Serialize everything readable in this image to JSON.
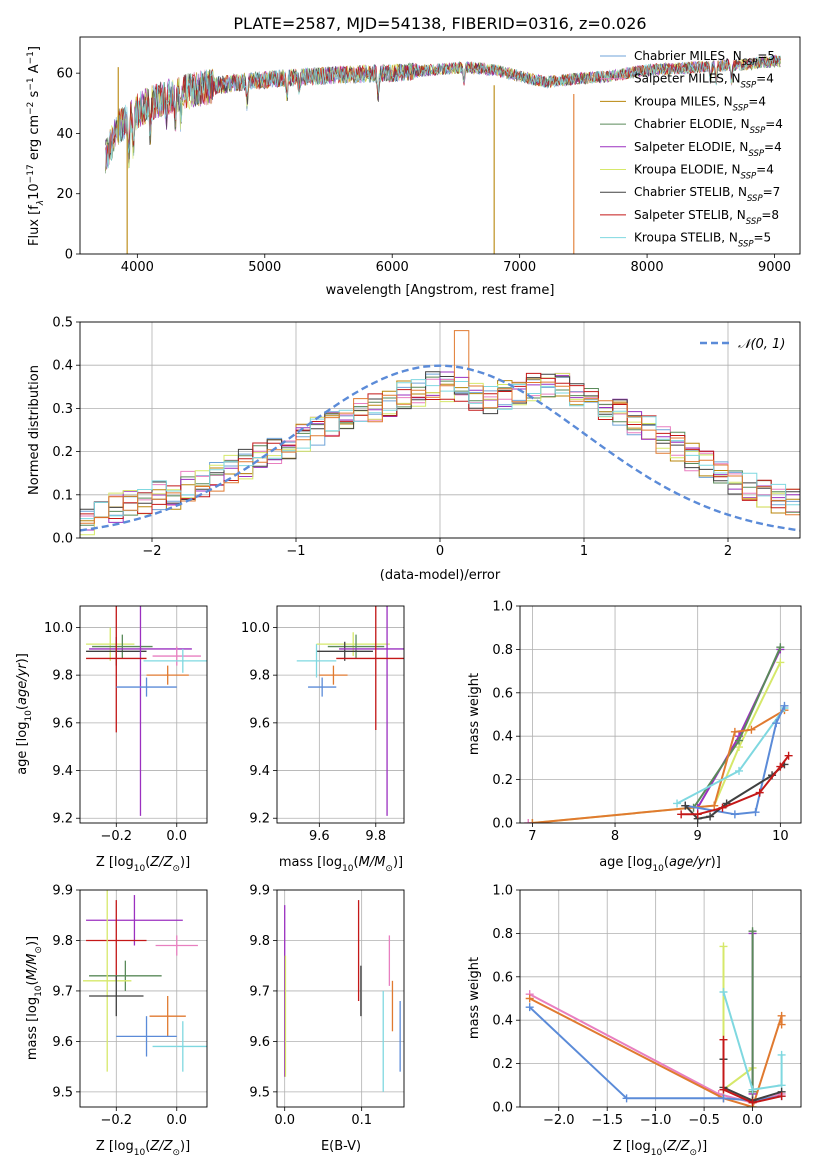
{
  "figure_title": "PLATE=2587, MJD=54138, FIBERID=0316, z=0.026",
  "colors": {
    "Chabrier MILES": "#6fa3d8",
    "Salpeter MILES": "#e87fc0",
    "Kroupa MILES": "#b8860b",
    "Chabrier ELODIE": "#5a8a5a",
    "Salpeter ELODIE": "#9b30c0",
    "Kroupa ELODIE": "#d6e86a",
    "Chabrier STELIB": "#404040",
    "Salpeter STELIB": "#c41818",
    "Kroupa STELIB": "#7fd8e0",
    "orange": "#e07a30",
    "blue": "#5b8bd8",
    "gauss": "#5b8bd8"
  },
  "chart_data": [
    {
      "id": "spectrum",
      "type": "line",
      "xlabel": "wavelength [Angstrom, rest frame]",
      "ylabel_parts": [
        "Flux [f",
        "λ",
        "10",
        "−17",
        " erg cm",
        "−2",
        " s",
        "−1",
        " A",
        "−1",
        "]"
      ],
      "xlim": [
        3550,
        9200
      ],
      "ylim": [
        0,
        72
      ],
      "xticks": [
        4000,
        5000,
        6000,
        7000,
        8000,
        9000
      ],
      "yticks": [
        0,
        20,
        40,
        60
      ],
      "legend": [
        {
          "name": "Chabrier MILES",
          "n": "5"
        },
        {
          "name": "Salpeter MILES",
          "n": "4"
        },
        {
          "name": "Kroupa MILES",
          "n": "4"
        },
        {
          "name": "Chabrier ELODIE",
          "n": "4"
        },
        {
          "name": "Salpeter ELODIE",
          "n": "4"
        },
        {
          "name": "Kroupa ELODIE",
          "n": "4"
        },
        {
          "name": "Chabrier STELIB",
          "n": "7"
        },
        {
          "name": "Salpeter STELIB",
          "n": "8"
        },
        {
          "name": "Kroupa STELIB",
          "n": "5"
        }
      ],
      "legend_sub": "SSP",
      "continuum": [
        [
          3750,
          32
        ],
        [
          3850,
          42
        ],
        [
          3950,
          46
        ],
        [
          4100,
          50
        ],
        [
          4300,
          53
        ],
        [
          4500,
          55
        ],
        [
          4800,
          57
        ],
        [
          5200,
          58.5
        ],
        [
          5600,
          59.5
        ],
        [
          6000,
          60
        ],
        [
          6300,
          61
        ],
        [
          6600,
          62
        ],
        [
          6800,
          61
        ],
        [
          7000,
          59
        ],
        [
          7200,
          57
        ],
        [
          7400,
          58
        ],
        [
          7700,
          59
        ],
        [
          8000,
          61
        ],
        [
          8400,
          62
        ],
        [
          8800,
          63
        ],
        [
          9000,
          64
        ]
      ],
      "absorption": [
        [
          3934,
          14
        ],
        [
          3968,
          12
        ],
        [
          4101,
          9
        ],
        [
          4227,
          6
        ],
        [
          4300,
          10
        ],
        [
          4340,
          8
        ],
        [
          4861,
          7
        ],
        [
          5175,
          6
        ],
        [
          5270,
          4
        ],
        [
          5890,
          8
        ],
        [
          6563,
          5
        ],
        [
          8498,
          4
        ],
        [
          8542,
          5
        ],
        [
          8662,
          5
        ]
      ],
      "spikes": [
        {
          "series": "Kroupa MILES",
          "x": 3920,
          "to": 0
        },
        {
          "series": "Kroupa MILES",
          "x": 6800,
          "to": 0
        },
        {
          "series": "orange",
          "x": 7425,
          "to": 0
        },
        {
          "series": "Kroupa MILES",
          "x": 3850,
          "to": 62
        }
      ]
    },
    {
      "id": "residual_hist",
      "type": "bar",
      "xlabel": "(data-model)/error",
      "ylabel": "Normed distribution",
      "xlim": [
        -2.5,
        2.5
      ],
      "ylim": [
        0,
        0.5
      ],
      "xticks": [
        -2,
        -1,
        0,
        1,
        2
      ],
      "yticks": [
        0,
        0.1,
        0.2,
        0.3,
        0.4,
        0.5
      ],
      "legend": "𝒩(0, 1)",
      "bin_width": 0.1,
      "bin_start": -2.5,
      "base_profile": [
        0.04,
        0.05,
        0.07,
        0.08,
        0.09,
        0.1,
        0.1,
        0.12,
        0.13,
        0.14,
        0.16,
        0.17,
        0.19,
        0.2,
        0.21,
        0.23,
        0.25,
        0.26,
        0.28,
        0.29,
        0.3,
        0.31,
        0.33,
        0.34,
        0.35,
        0.35,
        0.34,
        0.33,
        0.32,
        0.33,
        0.34,
        0.35,
        0.36,
        0.35,
        0.33,
        0.32,
        0.3,
        0.29,
        0.27,
        0.25,
        0.23,
        0.21,
        0.19,
        0.17,
        0.15,
        0.13,
        0.12,
        0.1,
        0.09,
        0.08
      ]
    },
    {
      "id": "age_vs_Z",
      "type": "scatter",
      "xlabel": "Z [log10(Z/Z⊙)]",
      "ylabel": "age [log10(age/yr)]",
      "xlim": [
        -0.32,
        0.1
      ],
      "ylim": [
        9.18,
        10.09
      ],
      "xticks": [
        -0.2,
        0.0
      ],
      "yticks": [
        9.2,
        9.4,
        9.6,
        9.8,
        10.0
      ],
      "points": [
        {
          "c": "Kroupa ELODIE",
          "x": -0.22,
          "xerr": 0.08,
          "y": 9.93,
          "yerr": 0.07
        },
        {
          "c": "Chabrier ELODIE",
          "x": -0.18,
          "xerr": 0.1,
          "y": 9.92,
          "yerr": 0.05
        },
        {
          "c": "Chabrier STELIB",
          "x": -0.2,
          "xerr": 0.1,
          "y": 9.9,
          "yerr": 0.06
        },
        {
          "c": "Salpeter ELODIE",
          "x": -0.12,
          "xerr": 0.17,
          "y": 9.91,
          "yerr": 0.7
        },
        {
          "c": "Salpeter STELIB",
          "x": -0.2,
          "xerr": 0.1,
          "y": 9.87,
          "yerr": 0.31
        },
        {
          "c": "Salpeter MILES",
          "x": 0.0,
          "xerr": 0.08,
          "y": 9.88,
          "yerr": 0.04
        },
        {
          "c": "Kroupa STELIB",
          "x": 0.02,
          "xerr": 0.13,
          "y": 9.86,
          "yerr": 0.05
        },
        {
          "c": "orange",
          "x": -0.03,
          "xerr": 0.07,
          "y": 9.8,
          "yerr": 0.04
        },
        {
          "c": "blue",
          "x": -0.1,
          "xerr": 0.1,
          "y": 9.75,
          "yerr": 0.04
        }
      ]
    },
    {
      "id": "age_vs_mass",
      "type": "scatter",
      "xlabel": "mass [log10(M/M⊙)]",
      "ylabel": "",
      "xlim": [
        9.45,
        9.9
      ],
      "ylim": [
        9.18,
        10.09
      ],
      "xticks": [
        9.6,
        9.8
      ],
      "yticks": [
        9.2,
        9.4,
        9.6,
        9.8,
        10.0
      ],
      "points": [
        {
          "c": "Kroupa ELODIE",
          "x": 9.72,
          "xerr": 0.13,
          "y": 9.93,
          "yerr": 0.05
        },
        {
          "c": "Chabrier ELODIE",
          "x": 9.73,
          "xerr": 0.1,
          "y": 9.92,
          "yerr": 0.05
        },
        {
          "c": "Chabrier STELIB",
          "x": 9.69,
          "xerr": 0.1,
          "y": 9.9,
          "yerr": 0.04
        },
        {
          "c": "Salpeter ELODIE",
          "x": 9.84,
          "xerr": 0.17,
          "y": 9.91,
          "yerr": 0.7
        },
        {
          "c": "Salpeter STELIB",
          "x": 9.8,
          "xerr": 0.14,
          "y": 9.87,
          "yerr": 0.3
        },
        {
          "c": "Kroupa STELIB",
          "x": 9.59,
          "xerr": 0.07,
          "y": 9.86,
          "yerr": 0.07
        },
        {
          "c": "orange",
          "x": 9.65,
          "xerr": 0.05,
          "y": 9.8,
          "yerr": 0.04
        },
        {
          "c": "blue",
          "x": 9.61,
          "xerr": 0.05,
          "y": 9.75,
          "yerr": 0.04
        }
      ]
    },
    {
      "id": "weight_vs_age",
      "type": "line",
      "xlabel": "age [log10(age/yr)]",
      "ylabel": "mass weight",
      "xlim": [
        6.85,
        10.25
      ],
      "ylim": [
        0,
        1
      ],
      "xticks": [
        7,
        8,
        9,
        10
      ],
      "yticks": [
        0,
        0.2,
        0.4,
        0.6,
        0.8,
        1.0
      ],
      "series": [
        {
          "c": "Kroupa ELODIE",
          "x": [
            7.0,
            9.2,
            9.5,
            10.0
          ],
          "y": [
            0.0,
            0.08,
            0.35,
            0.74
          ]
        },
        {
          "c": "Salpeter ELODIE",
          "x": [
            9.0,
            9.5,
            10.0
          ],
          "y": [
            0.07,
            0.4,
            0.8
          ]
        },
        {
          "c": "Chabrier ELODIE",
          "x": [
            8.95,
            9.5,
            10.0
          ],
          "y": [
            0.07,
            0.38,
            0.81
          ]
        },
        {
          "c": "orange",
          "x": [
            7.0,
            9.2,
            9.45,
            9.65,
            10.05
          ],
          "y": [
            0.0,
            0.08,
            0.42,
            0.43,
            0.52
          ]
        },
        {
          "c": "Kroupa STELIB",
          "x": [
            8.75,
            9.5,
            10.05
          ],
          "y": [
            0.09,
            0.24,
            0.53
          ]
        },
        {
          "c": "blue",
          "x": [
            8.85,
            9.45,
            9.7,
            9.95,
            10.05
          ],
          "y": [
            0.08,
            0.04,
            0.05,
            0.46,
            0.54
          ]
        },
        {
          "c": "Chabrier STELIB",
          "x": [
            8.85,
            9.0,
            9.15,
            9.35,
            9.9,
            10.05
          ],
          "y": [
            0.08,
            0.02,
            0.03,
            0.09,
            0.22,
            0.27
          ]
        },
        {
          "c": "Salpeter STELIB",
          "x": [
            8.8,
            9.0,
            9.3,
            9.75,
            10.0,
            10.1
          ],
          "y": [
            0.04,
            0.04,
            0.07,
            0.14,
            0.26,
            0.31
          ]
        },
        {
          "c": "Salpeter MILES",
          "x": [
            6.95
          ],
          "y": [
            0.0
          ]
        }
      ]
    },
    {
      "id": "mass_vs_Z",
      "type": "scatter",
      "xlabel": "Z [log10(Z/Z⊙)]",
      "ylabel": "mass [log10(M/M⊙)]",
      "xlim": [
        -0.32,
        0.1
      ],
      "ylim": [
        9.47,
        9.9
      ],
      "xticks": [
        -0.2,
        0.0
      ],
      "yticks": [
        9.5,
        9.6,
        9.7,
        9.8,
        9.9
      ],
      "points": [
        {
          "c": "Salpeter ELODIE",
          "x": -0.14,
          "xerr": 0.16,
          "y": 9.84,
          "yerr": 0.05
        },
        {
          "c": "Salpeter STELIB",
          "x": -0.2,
          "xerr": 0.1,
          "y": 9.8,
          "yerr": 0.08
        },
        {
          "c": "Salpeter MILES",
          "x": 0.0,
          "xerr": 0.07,
          "y": 9.79,
          "yerr": 0.02
        },
        {
          "c": "Chabrier ELODIE",
          "x": -0.17,
          "xerr": 0.12,
          "y": 9.73,
          "yerr": 0.03
        },
        {
          "c": "Kroupa ELODIE",
          "x": -0.23,
          "xerr": 0.08,
          "y": 9.72,
          "yerr": 0.18
        },
        {
          "c": "Chabrier STELIB",
          "x": -0.2,
          "xerr": 0.09,
          "y": 9.69,
          "yerr": 0.04
        },
        {
          "c": "orange",
          "x": -0.03,
          "xerr": 0.06,
          "y": 9.65,
          "yerr": 0.04
        },
        {
          "c": "blue",
          "x": -0.1,
          "xerr": 0.1,
          "y": 9.61,
          "yerr": 0.04
        },
        {
          "c": "Kroupa STELIB",
          "x": 0.02,
          "xerr": 0.1,
          "y": 9.59,
          "yerr": 0.05
        }
      ]
    },
    {
      "id": "mass_vs_ebv",
      "type": "scatter",
      "xlabel": "E(B-V)",
      "ylabel": "",
      "xlim": [
        -0.01,
        0.155
      ],
      "ylim": [
        9.47,
        9.9
      ],
      "xticks": [
        0.0,
        0.1
      ],
      "yticks": [
        9.5,
        9.6,
        9.7,
        9.8,
        9.9
      ],
      "points": [
        {
          "c": "Salpeter ELODIE",
          "x": 0.0,
          "xerr": 0.0,
          "y": 9.7,
          "yerr": 0.17
        },
        {
          "c": "Kroupa ELODIE",
          "x": 0.001,
          "xerr": 0.0,
          "y": 9.65,
          "yerr": 0.12
        },
        {
          "c": "Salpeter STELIB",
          "x": 0.096,
          "xerr": 0.0,
          "y": 9.78,
          "yerr": 0.1
        },
        {
          "c": "Chabrier STELIB",
          "x": 0.099,
          "xerr": 0.0,
          "y": 9.7,
          "yerr": 0.05
        },
        {
          "c": "Kroupa STELIB",
          "x": 0.128,
          "xerr": 0.0,
          "y": 9.6,
          "yerr": 0.1
        },
        {
          "c": "Salpeter MILES",
          "x": 0.136,
          "xerr": 0.0,
          "y": 9.76,
          "yerr": 0.05
        },
        {
          "c": "orange",
          "x": 0.14,
          "xerr": 0.0,
          "y": 9.67,
          "yerr": 0.05
        },
        {
          "c": "blue",
          "x": 0.15,
          "xerr": 0.0,
          "y": 9.61,
          "yerr": 0.07
        }
      ]
    },
    {
      "id": "weight_vs_Z",
      "type": "line",
      "xlabel": "Z [log10(Z/Z⊙)]",
      "ylabel": "mass weight",
      "xlim": [
        -2.4,
        0.5
      ],
      "ylim": [
        0,
        1
      ],
      "xticks": [
        -2.0,
        -1.5,
        -1.0,
        -0.5,
        0.0
      ],
      "yticks": [
        0,
        0.2,
        0.4,
        0.6,
        0.8,
        1.0
      ],
      "series": [
        {
          "c": "Salpeter MILES",
          "x": [
            -2.3,
            -0.35,
            0.0,
            0.3
          ],
          "y": [
            0.52,
            0.06,
            0.02,
            0.06
          ]
        },
        {
          "c": "orange",
          "x": [
            -2.3,
            -0.3,
            0.0,
            0.3,
            0.3
          ],
          "y": [
            0.5,
            0.04,
            0.0,
            0.42,
            0.38
          ]
        },
        {
          "c": "blue",
          "x": [
            -2.3,
            -1.3,
            -0.3,
            0.0,
            0.3
          ],
          "y": [
            0.46,
            0.04,
            0.04,
            0.03,
            0.05
          ]
        },
        {
          "c": "Kroupa ELODIE",
          "x": [
            -0.3,
            -0.3,
            0.0,
            0.0
          ],
          "y": [
            0.74,
            0.08,
            0.18,
            0.0
          ]
        },
        {
          "c": "Salpeter ELODIE",
          "x": [
            0.0,
            0.0
          ],
          "y": [
            0.8,
            0.06
          ]
        },
        {
          "c": "Chabrier ELODIE",
          "x": [
            0.0,
            0.0
          ],
          "y": [
            0.81,
            0.07
          ]
        },
        {
          "c": "Kroupa STELIB",
          "x": [
            -0.3,
            0.0,
            0.3,
            0.3
          ],
          "y": [
            0.53,
            0.08,
            0.1,
            0.24
          ]
        },
        {
          "c": "Chabrier STELIB",
          "x": [
            -0.3,
            -0.3,
            0.0,
            0.3
          ],
          "y": [
            0.22,
            0.09,
            0.03,
            0.07
          ]
        },
        {
          "c": "Salpeter STELIB",
          "x": [
            -0.3,
            -0.3,
            0.0,
            0.3
          ],
          "y": [
            0.31,
            0.08,
            0.02,
            0.05
          ]
        }
      ]
    }
  ]
}
